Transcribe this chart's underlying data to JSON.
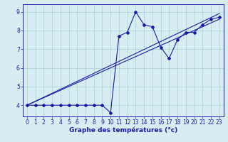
{
  "title": "",
  "xlabel": "Graphe des températures (°c)",
  "ylabel": "",
  "xlim": [
    -0.5,
    23.5
  ],
  "ylim": [
    3.4,
    9.4
  ],
  "yticks": [
    4,
    5,
    6,
    7,
    8,
    9
  ],
  "xticks": [
    0,
    1,
    2,
    3,
    4,
    5,
    6,
    7,
    8,
    9,
    10,
    11,
    12,
    13,
    14,
    15,
    16,
    17,
    18,
    19,
    20,
    21,
    22,
    23
  ],
  "bg_color": "#d6eef2",
  "grid_color": "#aaccd4",
  "line_color": "#1a1aaa",
  "temp_line": {
    "x": [
      0,
      1,
      2,
      3,
      4,
      5,
      6,
      7,
      8,
      9,
      10,
      11,
      12,
      13,
      14,
      15,
      16,
      17,
      18,
      19,
      20,
      21,
      22,
      23
    ],
    "y": [
      4.0,
      4.0,
      4.0,
      4.0,
      4.0,
      4.0,
      4.0,
      4.0,
      4.0,
      4.0,
      3.6,
      7.7,
      7.9,
      9.0,
      8.3,
      8.2,
      7.1,
      6.5,
      7.5,
      7.9,
      7.9,
      8.3,
      8.6,
      8.7
    ]
  },
  "trend_line1": {
    "x": [
      0,
      23
    ],
    "y": [
      4.0,
      8.9
    ]
  },
  "trend_line2": {
    "x": [
      0,
      23
    ],
    "y": [
      4.0,
      8.6
    ]
  },
  "marker": "D",
  "marker_size": 2.0,
  "linewidth": 0.8,
  "tick_fontsize": 5.5,
  "xlabel_fontsize": 6.5
}
